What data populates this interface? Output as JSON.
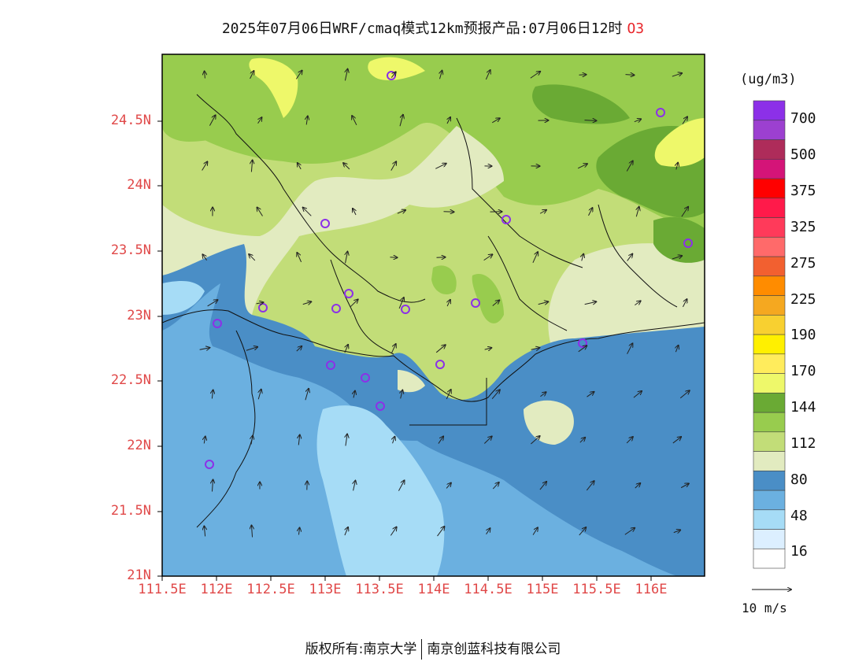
{
  "title": {
    "text": "2025年07月06日WRF/cmaq模式12km预报产品:07月06日12时",
    "species": "O3"
  },
  "axes": {
    "y_ticks": [
      "24.5N",
      "24N",
      "23.5N",
      "23N",
      "22.5N",
      "22N",
      "21.5N",
      "21N"
    ],
    "x_ticks": [
      "111.5E",
      "112E",
      "112.5E",
      "113E",
      "113.5E",
      "114E",
      "114.5E",
      "115E",
      "115.5E",
      "116E"
    ]
  },
  "legend": {
    "unit": "(ug/m3)",
    "labels": [
      "700",
      "500",
      "375",
      "325",
      "275",
      "225",
      "190",
      "170",
      "144",
      "112",
      "80",
      "48",
      "16"
    ],
    "colors": [
      "#ffffff",
      "#dcefff",
      "#a6dcf6",
      "#6bb0e0",
      "#4a8ec6",
      "#e2ebc0",
      "#c2dd78",
      "#98cc4e",
      "#6aaa34",
      "#eef86a",
      "#ffec5c",
      "#fff000",
      "#f8d030",
      "#f5a820",
      "#ff8c00",
      "#f26030",
      "#ff6a6a",
      "#ff3a5a",
      "#ff1a4a",
      "#ff0000",
      "#d41478",
      "#ae2c5a",
      "#9c40d0",
      "#8c30e8"
    ]
  },
  "wind": {
    "reference_label": "10 m/s"
  },
  "footer": {
    "left": "版权所有:南京大学",
    "right": "南京创蓝科技有限公司"
  },
  "palette": {
    "sea": "#4a8ec6",
    "sea_light": "#6bb0e0",
    "sea_lighter": "#a6dcf6",
    "land_pale": "#e2ebc0",
    "land_light": "#c2dd78",
    "land_mid": "#98cc4e",
    "land_dark": "#6aaa34",
    "yellow": "#eef86a",
    "title_red": "#e8262b"
  }
}
